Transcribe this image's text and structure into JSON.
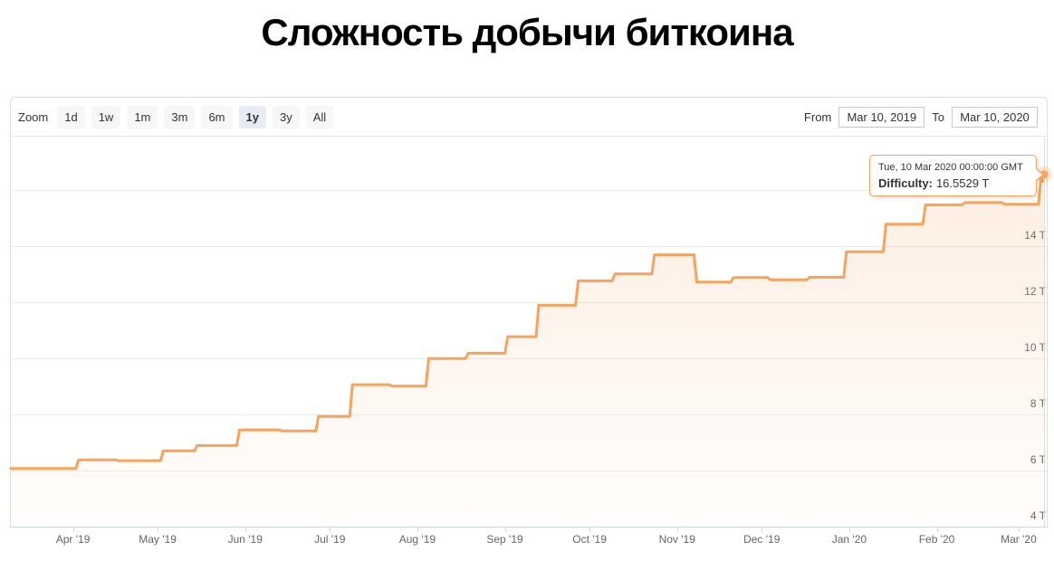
{
  "page_title": "Сложность добычи биткоина",
  "toolbar": {
    "zoom_label": "Zoom",
    "zoom_buttons": [
      {
        "label": "1d",
        "active": false
      },
      {
        "label": "1w",
        "active": false
      },
      {
        "label": "1m",
        "active": false
      },
      {
        "label": "3m",
        "active": false
      },
      {
        "label": "6m",
        "active": false
      },
      {
        "label": "1y",
        "active": true
      },
      {
        "label": "3y",
        "active": false
      },
      {
        "label": "All",
        "active": false
      }
    ],
    "from_label": "From",
    "from_value": "Mar 10, 2019",
    "to_label": "To",
    "to_value": "Mar 10, 2020"
  },
  "tooltip": {
    "date": "Tue, 10 Mar 2020 00:00:00 GMT",
    "series_label": "Difficulty:",
    "value": "16.5529 T"
  },
  "chart_data": {
    "type": "area",
    "subtype": "step-line",
    "title": "Сложность добычи биткоина",
    "legend": false,
    "grid": true,
    "colors": {
      "series": "#f7a35c",
      "axis": "#ccd6eb",
      "grid": "#ebebeb",
      "label": "#666666"
    },
    "x_axis": {
      "range": [
        "2019-03-10",
        "2020-03-10"
      ],
      "ticks": [
        {
          "label": "Apr '19",
          "day": 22
        },
        {
          "label": "May '19",
          "day": 52
        },
        {
          "label": "Jun '19",
          "day": 83
        },
        {
          "label": "Jul '19",
          "day": 113
        },
        {
          "label": "Aug '19",
          "day": 144
        },
        {
          "label": "Sep '19",
          "day": 175
        },
        {
          "label": "Oct '19",
          "day": 205
        },
        {
          "label": "Nov '19",
          "day": 236
        },
        {
          "label": "Dec '19",
          "day": 266
        },
        {
          "label": "Jan '20",
          "day": 297
        },
        {
          "label": "Feb '20",
          "day": 328
        },
        {
          "label": "Mar '20",
          "day": 357
        }
      ]
    },
    "y_axis": {
      "unit": "T",
      "min": 4,
      "max": 17,
      "ticks": [
        {
          "value": 16,
          "label": "16 T"
        },
        {
          "value": 14,
          "label": "14 T"
        },
        {
          "value": 12,
          "label": "12 T"
        },
        {
          "value": 10,
          "label": "10 T"
        },
        {
          "value": 8,
          "label": "8 T"
        },
        {
          "value": 6,
          "label": "6 T"
        },
        {
          "value": 4,
          "label": "4 T"
        }
      ]
    },
    "series": [
      {
        "name": "Difficulty",
        "color": "#f7a35c",
        "unit": "T",
        "points": [
          {
            "date": "2019-03-10",
            "day": 0,
            "value": 6.07
          },
          {
            "date": "2019-03-22",
            "day": 12,
            "value": 6.07
          },
          {
            "date": "2019-04-03",
            "day": 24,
            "value": 6.38
          },
          {
            "date": "2019-04-17",
            "day": 38,
            "value": 6.35
          },
          {
            "date": "2019-05-03",
            "day": 54,
            "value": 6.7
          },
          {
            "date": "2019-05-15",
            "day": 66,
            "value": 6.89
          },
          {
            "date": "2019-05-30",
            "day": 81,
            "value": 7.45
          },
          {
            "date": "2019-06-14",
            "day": 96,
            "value": 7.41
          },
          {
            "date": "2019-06-27",
            "day": 109,
            "value": 7.93
          },
          {
            "date": "2019-07-09",
            "day": 121,
            "value": 9.06
          },
          {
            "date": "2019-07-23",
            "day": 135,
            "value": 9.01
          },
          {
            "date": "2019-08-05",
            "day": 148,
            "value": 9.99
          },
          {
            "date": "2019-08-19",
            "day": 162,
            "value": 10.18
          },
          {
            "date": "2019-09-02",
            "day": 176,
            "value": 10.77
          },
          {
            "date": "2019-09-13",
            "day": 187,
            "value": 11.89
          },
          {
            "date": "2019-09-27",
            "day": 201,
            "value": 12.76
          },
          {
            "date": "2019-10-10",
            "day": 214,
            "value": 13.01
          },
          {
            "date": "2019-10-24",
            "day": 228,
            "value": 13.69
          },
          {
            "date": "2019-11-08",
            "day": 243,
            "value": 12.72
          },
          {
            "date": "2019-11-21",
            "day": 256,
            "value": 12.88
          },
          {
            "date": "2019-12-04",
            "day": 269,
            "value": 12.8
          },
          {
            "date": "2019-12-18",
            "day": 283,
            "value": 12.89
          },
          {
            "date": "2019-12-31",
            "day": 296,
            "value": 13.8
          },
          {
            "date": "2020-01-14",
            "day": 310,
            "value": 14.78
          },
          {
            "date": "2020-01-28",
            "day": 324,
            "value": 15.47
          },
          {
            "date": "2020-02-11",
            "day": 338,
            "value": 15.55
          },
          {
            "date": "2020-02-25",
            "day": 352,
            "value": 15.49
          },
          {
            "date": "2020-03-09",
            "day": 365,
            "value": 16.55
          },
          {
            "date": "2020-03-10",
            "day": 366,
            "value": 16.5529,
            "marker": true
          }
        ]
      }
    ]
  }
}
